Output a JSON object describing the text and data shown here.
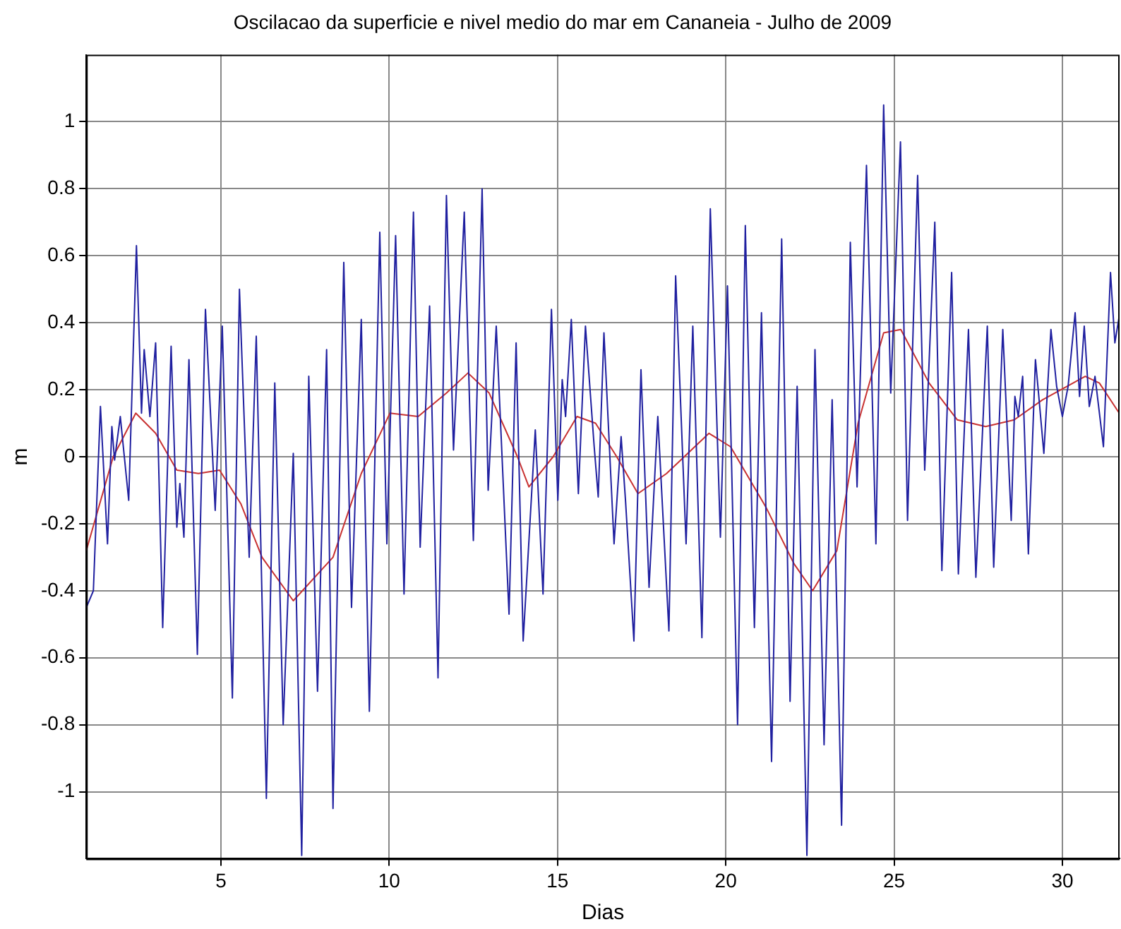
{
  "chart_data": {
    "type": "line",
    "title": "Oscilacao da superficie e nivel medio do mar em Cananeia - Julho de 2009",
    "xlabel": "Dias",
    "ylabel": "m",
    "xlim": [
      1,
      31.7
    ],
    "xticks": [
      5,
      10,
      15,
      20,
      25,
      30
    ],
    "ylim": [
      -1.2,
      1.2
    ],
    "yticks": [
      -1,
      -0.8,
      -0.6,
      -0.4,
      -0.2,
      0,
      0.2,
      0.4,
      0.6,
      0.8,
      1
    ],
    "grid": true,
    "legend": false,
    "series": [
      {
        "color": "#2020a0",
        "x": [
          1.0,
          1.21,
          1.42,
          1.63,
          1.76,
          1.84,
          2.01,
          2.26,
          2.49,
          2.64,
          2.72,
          2.89,
          3.06,
          3.27,
          3.52,
          3.69,
          3.78,
          3.9,
          4.05,
          4.3,
          4.54,
          4.83,
          5.04,
          5.34,
          5.55,
          5.84,
          6.05,
          6.35,
          6.6,
          6.85,
          7.15,
          7.4,
          7.61,
          7.87,
          8.14,
          8.33,
          8.65,
          8.88,
          9.17,
          9.41,
          9.72,
          9.93,
          10.19,
          10.44,
          10.72,
          10.92,
          11.2,
          11.45,
          11.7,
          11.91,
          12.23,
          12.5,
          12.76,
          12.94,
          13.18,
          13.56,
          13.77,
          13.98,
          14.34,
          14.57,
          14.82,
          15.01,
          15.14,
          15.24,
          15.41,
          15.62,
          15.83,
          16.09,
          16.21,
          16.38,
          16.68,
          16.89,
          17.02,
          17.27,
          17.48,
          17.72,
          17.98,
          18.31,
          18.51,
          18.82,
          19.02,
          19.29,
          19.54,
          19.84,
          20.05,
          20.35,
          20.58,
          20.85,
          21.06,
          21.36,
          21.66,
          21.91,
          22.12,
          22.41,
          22.65,
          22.92,
          23.16,
          23.44,
          23.7,
          23.9,
          24.18,
          24.46,
          24.69,
          24.9,
          25.19,
          25.4,
          25.7,
          25.91,
          26.21,
          26.42,
          26.71,
          26.91,
          27.21,
          27.43,
          27.77,
          27.96,
          28.23,
          28.48,
          28.59,
          28.69,
          28.82,
          28.99,
          29.2,
          29.3,
          29.45,
          29.66,
          29.83,
          30.0,
          30.17,
          30.38,
          30.51,
          30.65,
          30.8,
          30.97,
          31.22,
          31.43,
          31.56,
          31.69
        ],
        "values": [
          -0.45,
          -0.4,
          0.15,
          -0.26,
          0.09,
          -0.01,
          0.12,
          -0.13,
          0.63,
          0.13,
          0.32,
          0.12,
          0.34,
          -0.51,
          0.33,
          -0.21,
          -0.08,
          -0.24,
          0.29,
          -0.59,
          0.44,
          -0.16,
          0.39,
          -0.72,
          0.5,
          -0.3,
          0.36,
          -1.02,
          0.22,
          -0.8,
          0.01,
          -1.19,
          0.24,
          -0.7,
          0.32,
          -1.05,
          0.58,
          -0.45,
          0.41,
          -0.76,
          0.67,
          -0.26,
          0.66,
          -0.41,
          0.73,
          -0.27,
          0.45,
          -0.66,
          0.78,
          0.02,
          0.73,
          -0.25,
          0.8,
          -0.1,
          0.39,
          -0.47,
          0.34,
          -0.55,
          0.08,
          -0.41,
          0.44,
          -0.13,
          0.23,
          0.12,
          0.41,
          -0.11,
          0.39,
          0.03,
          -0.12,
          0.37,
          -0.26,
          0.06,
          -0.13,
          -0.55,
          0.26,
          -0.39,
          0.12,
          -0.52,
          0.54,
          -0.26,
          0.39,
          -0.54,
          0.74,
          -0.24,
          0.51,
          -0.8,
          0.69,
          -0.51,
          0.43,
          -0.91,
          0.65,
          -0.73,
          0.21,
          -1.19,
          0.32,
          -0.86,
          0.17,
          -1.1,
          0.64,
          -0.09,
          0.87,
          -0.26,
          1.05,
          0.19,
          0.94,
          -0.19,
          0.84,
          -0.04,
          0.7,
          -0.34,
          0.55,
          -0.35,
          0.38,
          -0.36,
          0.39,
          -0.33,
          0.38,
          -0.19,
          0.18,
          0.12,
          0.24,
          -0.29,
          0.29,
          0.18,
          0.01,
          0.38,
          0.21,
          0.12,
          0.21,
          0.43,
          0.18,
          0.39,
          0.15,
          0.24,
          0.03,
          0.55,
          0.34,
          0.42
        ]
      },
      {
        "color": "#c83232",
        "x": [
          1.0,
          1.8,
          2.47,
          3.06,
          3.69,
          4.33,
          4.96,
          5.59,
          6.22,
          7.15,
          8.33,
          9.17,
          10.02,
          10.86,
          11.7,
          12.34,
          12.97,
          13.81,
          14.15,
          14.87,
          15.58,
          16.13,
          16.76,
          17.39,
          18.24,
          19.5,
          20.14,
          21.19,
          22.03,
          22.58,
          23.3,
          23.93,
          24.69,
          25.2,
          26.04,
          26.88,
          27.72,
          28.57,
          29.41,
          30.68,
          31.1,
          31.69
        ],
        "values": [
          -0.28,
          0.0,
          0.13,
          0.07,
          -0.04,
          -0.05,
          -0.04,
          -0.14,
          -0.3,
          -0.43,
          -0.3,
          -0.05,
          0.13,
          0.12,
          0.19,
          0.25,
          0.19,
          0.0,
          -0.09,
          0.0,
          0.12,
          0.1,
          0.0,
          -0.11,
          -0.05,
          0.07,
          0.03,
          -0.15,
          -0.32,
          -0.4,
          -0.28,
          0.1,
          0.37,
          0.38,
          0.22,
          0.11,
          0.09,
          0.11,
          0.17,
          0.24,
          0.22,
          0.13
        ]
      }
    ]
  }
}
